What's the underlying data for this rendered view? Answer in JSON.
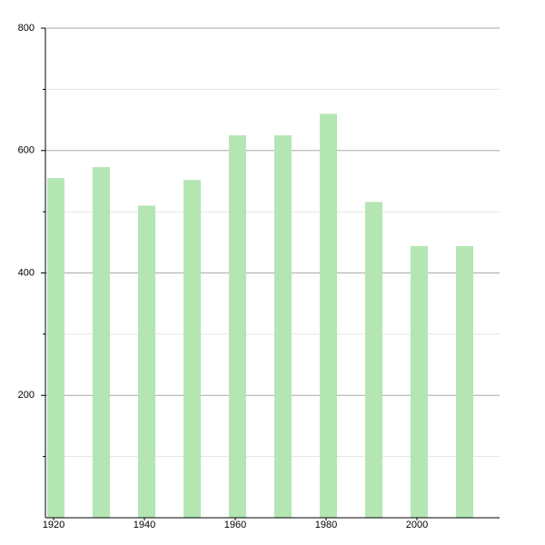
{
  "chart_data": {
    "type": "bar",
    "x": [
      1920,
      1930,
      1940,
      1950,
      1960,
      1970,
      1980,
      1990,
      2000,
      2010
    ],
    "values": [
      555,
      573,
      510,
      552,
      625,
      625,
      660,
      516,
      444,
      444
    ],
    "color": "#b3e6b3",
    "xlim": [
      1920,
      2020
    ],
    "xticks": [
      1920,
      1940,
      1960,
      1980,
      2000
    ],
    "ylim": [
      0,
      800
    ],
    "yticks": [
      200,
      400,
      600,
      800
    ],
    "yminorticks": [
      100,
      300,
      500,
      700
    ],
    "grid": true
  }
}
